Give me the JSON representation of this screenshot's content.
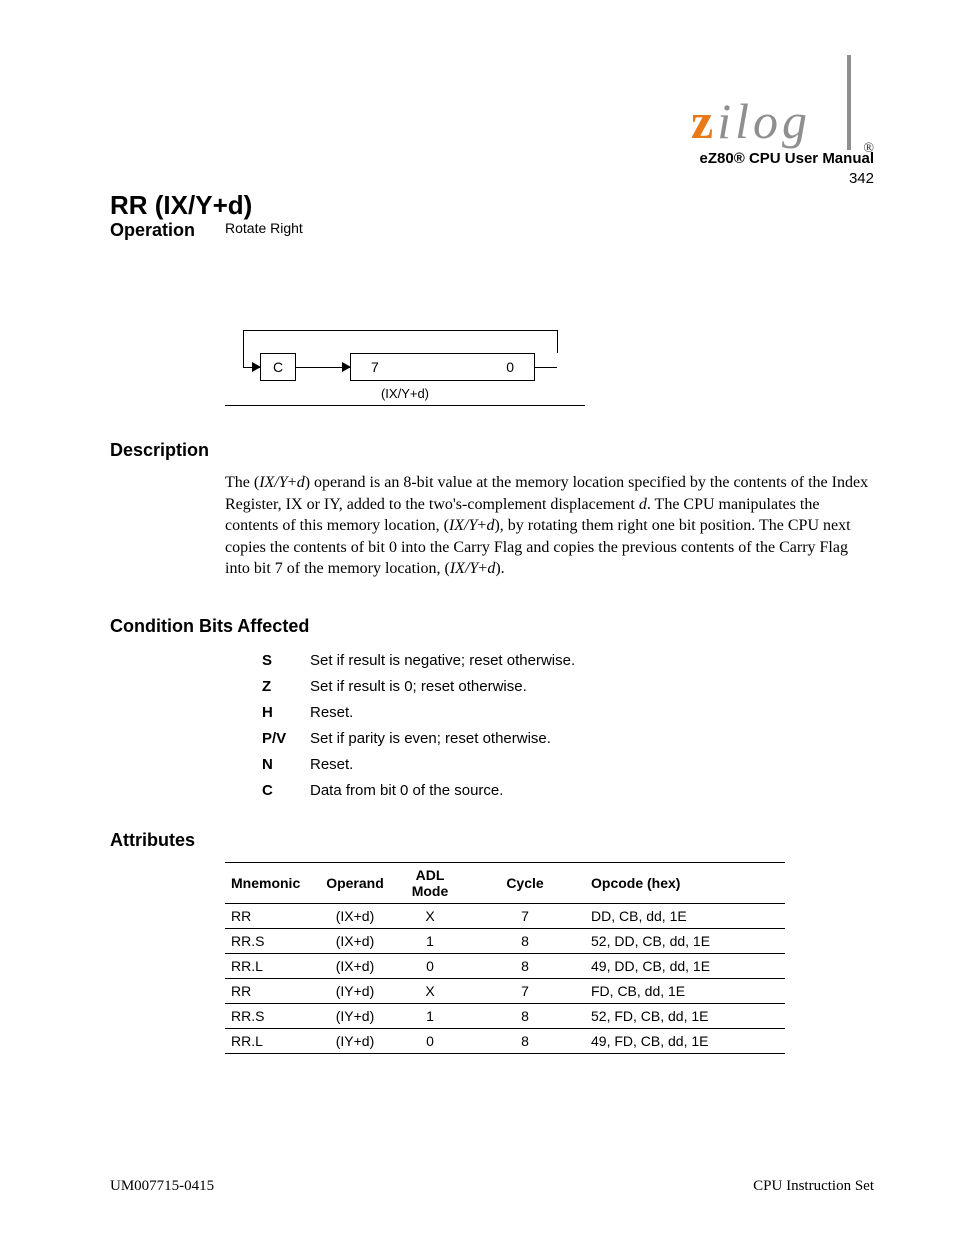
{
  "logo_reg": "®",
  "diagram": {
    "carry_label": "C",
    "bit7": "7",
    "bit0": "0",
    "caption": "(IX/Y+d)"
  },
  "operation": {
    "heading": "Rotate Right"
  },
  "description": {
    "heading": "Description",
    "body_parts": [
      "The (",
      "IX/Y",
      "+",
      "d",
      ") operand is an 8-bit value at the memory location specified by the contents of the Index Register, IX or IY, added to the two's-complement displacement ",
      "d",
      ". The CPU manipulates the contents of this memory location, (",
      "IX/Y",
      "+",
      "d",
      "), by rotating them right one bit position. The CPU next copies the contents of bit 0 into the Carry Flag and copies the previous contents of the Carry Flag into bit 7 of the memory location, (",
      "IX/Y",
      "+",
      "d",
      ")."
    ]
  },
  "flags": {
    "heading": "Condition Bits Affected",
    "rows": [
      {
        "key": "S",
        "text": "Set if result is negative; reset otherwise."
      },
      {
        "key": "Z",
        "text": "Set if result is 0; reset otherwise."
      },
      {
        "key": "H",
        "text": "Reset."
      },
      {
        "key": "P/V",
        "text": "Set if parity is even; reset otherwise."
      },
      {
        "key": "N",
        "text": "Reset."
      },
      {
        "key": "C",
        "text": "Data from bit 0 of the source."
      }
    ]
  },
  "attributes": {
    "heading": "Attributes",
    "columns": [
      "Mnemonic",
      "Operand",
      "ADL Mode",
      "Cycle",
      "Opcode (hex)"
    ],
    "rows": [
      {
        "mnem": "RR",
        "operand": "(IX+d)",
        "mode": "X",
        "cycle": "7",
        "op": "DD, CB, dd, 1E"
      },
      {
        "mnem": "RR.S",
        "operand": "(IX+d)",
        "mode": "1",
        "cycle": "8",
        "op": "52, DD, CB, dd, 1E"
      },
      {
        "mnem": "RR.L",
        "operand": "(IX+d)",
        "mode": "0",
        "cycle": "8",
        "op": "49, DD, CB, dd, 1E"
      },
      {
        "mnem": "RR",
        "operand": "(IY+d)",
        "mode": "X",
        "cycle": "7",
        "op": "FD, CB, dd, 1E"
      },
      {
        "mnem": "RR.S",
        "operand": "(IY+d)",
        "mode": "1",
        "cycle": "8",
        "op": "52, FD, CB, dd, 1E"
      },
      {
        "mnem": "RR.L",
        "operand": "(IY+d)",
        "mode": "0",
        "cycle": "8",
        "op": "49, FD, CB, dd, 1E"
      }
    ]
  },
  "footer": {
    "left": "UM007715-0415",
    "right": "CPU Instruction Set"
  },
  "header": {
    "title": "eZ80® CPU User Manual",
    "page": "342"
  },
  "colors": {
    "logo_z": "#e97817",
    "logo_rest": "#8f8f8f",
    "logo_bar": "#8f8f8f"
  }
}
